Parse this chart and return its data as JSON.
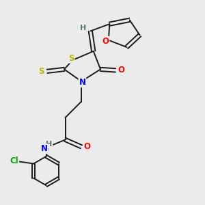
{
  "bg_color": "#ebebeb",
  "bond_color": "#1a1a1a",
  "atom_colors": {
    "S": "#b8b800",
    "N": "#0000ff",
    "O": "#ff0000",
    "Cl": "#00aa00",
    "H": "#557777",
    "C": "#1a1a1a"
  },
  "font_size": 8.5,
  "lw": 1.4
}
